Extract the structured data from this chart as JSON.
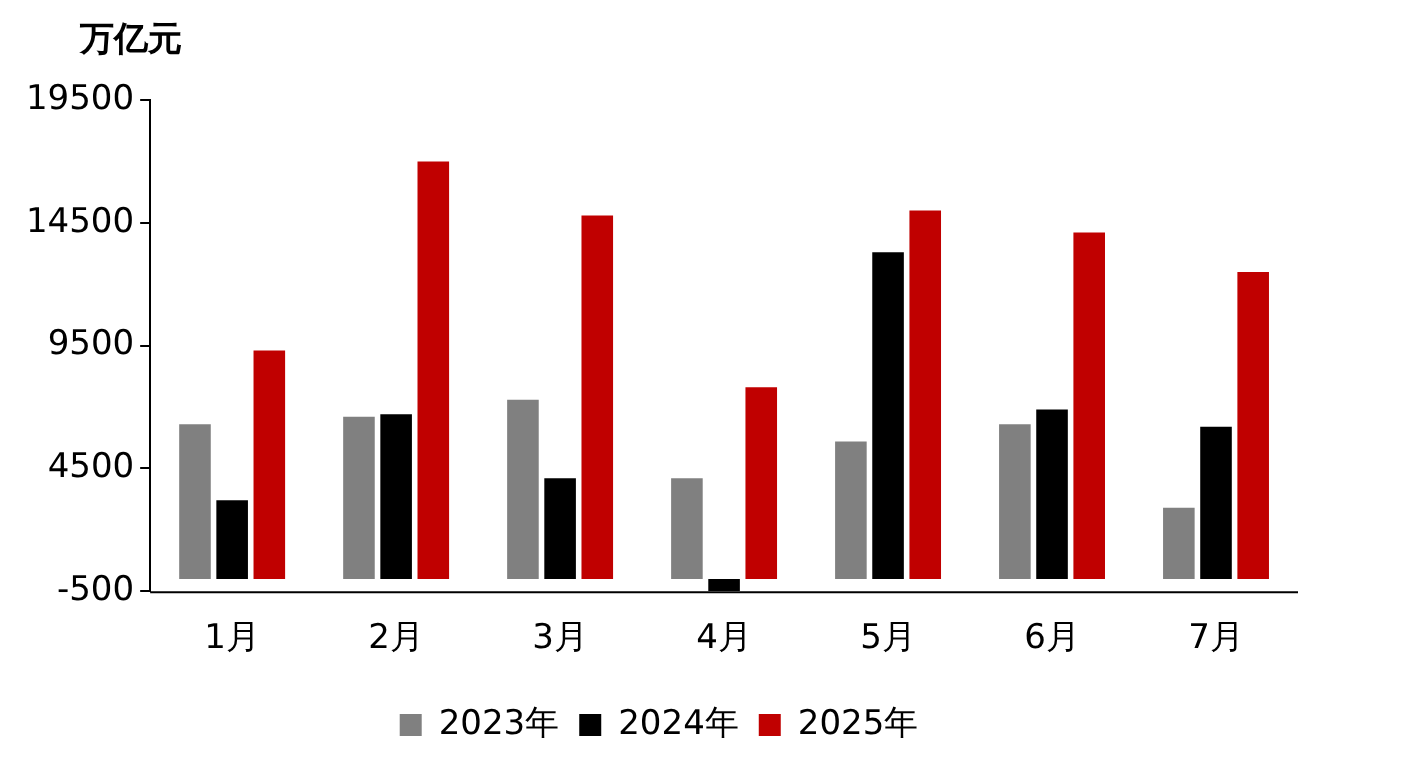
{
  "chart_data": {
    "type": "bar",
    "ylabel": "万亿元",
    "categories": [
      "1月",
      "2月",
      "3月",
      "4月",
      "5月",
      "6月",
      "7月"
    ],
    "series": [
      {
        "name": "2023年",
        "color": "#808080",
        "values": [
          6300,
          6600,
          7300,
          4100,
          5600,
          6300,
          2900
        ]
      },
      {
        "name": "2024年",
        "color": "#000000",
        "values": [
          3200,
          6700,
          4100,
          -500,
          13300,
          6900,
          6200
        ]
      },
      {
        "name": "2025年",
        "color": "#c00000",
        "values": [
          9300,
          17000,
          14800,
          7800,
          15000,
          14100,
          12500
        ]
      }
    ],
    "ylim": [
      -500,
      19500
    ],
    "yticks": [
      -500,
      4500,
      9500,
      14500,
      19500
    ],
    "grid": false,
    "legend": "bottom"
  }
}
